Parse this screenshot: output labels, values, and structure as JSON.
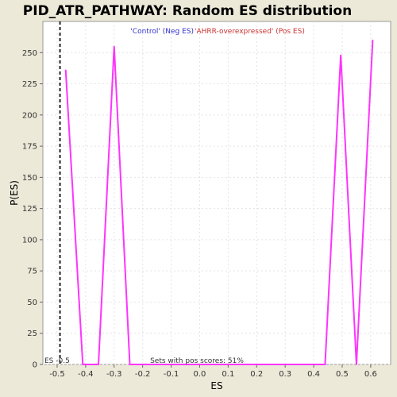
{
  "chart_data": {
    "type": "line",
    "title": "PID_ATR_PATHWAY: Random ES distribution",
    "xlabel": "ES",
    "ylabel": "P(ES)",
    "xlim": [
      -0.55,
      0.67
    ],
    "ylim": [
      0,
      275
    ],
    "x_ticks": [
      "-0.5",
      "-0.4",
      "-0.3",
      "-0.2",
      "-0.1",
      "0.0",
      "0.1",
      "0.2",
      "0.3",
      "0.4",
      "0.5",
      "0.6"
    ],
    "y_ticks": [
      "0",
      "25",
      "50",
      "75",
      "100",
      "125",
      "150",
      "175",
      "200",
      "225",
      "250"
    ],
    "grid": true,
    "legend": {
      "placement": "top-center",
      "neg_label": "'Control' (Neg ES)",
      "pos_label": "'AHRR-overexpressed' (Pos ES)",
      "neg_color": "#3333cc",
      "pos_color": "#cc3333"
    },
    "series": [
      {
        "color": "#ff33ff",
        "x": [
          -0.47,
          -0.41,
          -0.355,
          -0.3,
          -0.245,
          0.0,
          0.44,
          0.495,
          0.55,
          0.607
        ],
        "y": [
          236,
          0,
          0,
          255,
          0,
          0,
          0,
          248,
          0,
          260
        ]
      }
    ],
    "es_line": {
      "x": -0.49,
      "label": "ES -0.5"
    },
    "annotation": "Sets with pos scores: 51%"
  }
}
